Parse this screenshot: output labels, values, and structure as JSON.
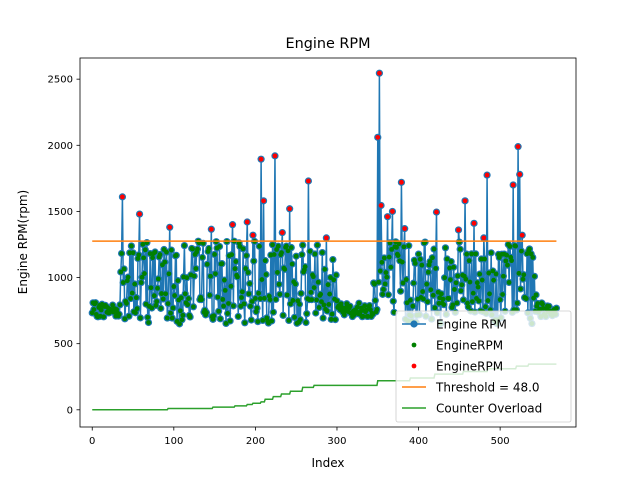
{
  "chart_data": {
    "type": "line",
    "title": "Engine RPM",
    "xlabel": "Index",
    "ylabel": "Engine RPM(rpm)",
    "xlim": [
      -15,
      593
    ],
    "ylim": [
      -130,
      2660
    ],
    "x_ticks": [
      0,
      100,
      200,
      300,
      400,
      500
    ],
    "x_tick_labels": [
      "0",
      "100",
      "200",
      "300",
      "400",
      "500"
    ],
    "y_ticks": [
      0,
      500,
      1000,
      1500,
      2000,
      2500
    ],
    "y_tick_labels": [
      "0",
      "500",
      "1000",
      "1500",
      "2000",
      "2500"
    ],
    "grid": false,
    "legend_position": "lower-right",
    "threshold": 1275,
    "rpm_peaks": [
      [
        37,
        1610
      ],
      [
        58,
        1480
      ],
      [
        95,
        1380
      ],
      [
        146,
        1365
      ],
      [
        172,
        1400
      ],
      [
        190,
        1420
      ],
      [
        197,
        1320
      ],
      [
        207,
        1895
      ],
      [
        210,
        1580
      ],
      [
        224,
        1920
      ],
      [
        233,
        1340
      ],
      [
        242,
        1520
      ],
      [
        265,
        1730
      ],
      [
        287,
        1300
      ],
      [
        350,
        2060
      ],
      [
        352,
        2545
      ],
      [
        354,
        1545
      ],
      [
        362,
        1460
      ],
      [
        368,
        1500
      ],
      [
        379,
        1720
      ],
      [
        383,
        1370
      ],
      [
        422,
        1495
      ],
      [
        449,
        1360
      ],
      [
        457,
        1580
      ],
      [
        468,
        1410
      ],
      [
        480,
        1300
      ],
      [
        484,
        1775
      ],
      [
        516,
        1700
      ],
      [
        522,
        1990
      ],
      [
        524,
        1780
      ],
      [
        527,
        1320
      ]
    ],
    "counter_steps": [
      [
        0,
        0
      ],
      [
        93,
        10
      ],
      [
        148,
        20
      ],
      [
        175,
        30
      ],
      [
        190,
        40
      ],
      [
        197,
        50
      ],
      [
        207,
        60
      ],
      [
        212,
        80
      ],
      [
        222,
        100
      ],
      [
        232,
        120
      ],
      [
        243,
        140
      ],
      [
        258,
        170
      ],
      [
        272,
        185
      ],
      [
        350,
        220
      ],
      [
        390,
        240
      ],
      [
        420,
        270
      ],
      [
        455,
        290
      ],
      [
        485,
        310
      ],
      [
        520,
        330
      ],
      [
        535,
        345
      ],
      [
        565,
        345
      ]
    ],
    "series": [
      {
        "name": "Engine RPM",
        "color": "#1f77b4"
      },
      {
        "name": "EngineRPM",
        "color": "#008000"
      },
      {
        "name": "EngineRPM",
        "color": "#ff0000"
      },
      {
        "name": "Threshold = 48.0",
        "color": "#ff7f0e"
      },
      {
        "name": "Counter Overload",
        "color": "#2ca02c"
      }
    ]
  }
}
